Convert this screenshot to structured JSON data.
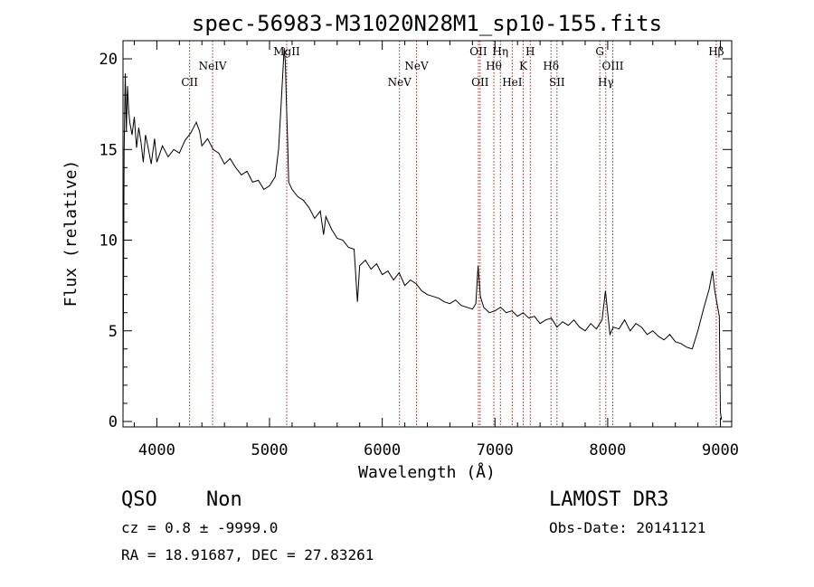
{
  "chart_data": {
    "type": "line",
    "title": "spec-56983-M31020N28M1_sp10-155.fits",
    "xlabel": "Wavelength (Å)",
    "ylabel": "Flux (relative)",
    "xlim": [
      3700,
      9100
    ],
    "ylim": [
      -0.3,
      21
    ],
    "x_ticks": [
      4000,
      5000,
      6000,
      7000,
      8000,
      9000
    ],
    "y_ticks": [
      0,
      5,
      10,
      15,
      20
    ],
    "grid": false,
    "line_color": "#000000",
    "marker_color": "#b22222",
    "series": [
      {
        "x": [
          3700,
          3710,
          3720,
          3730,
          3740,
          3750,
          3760,
          3780,
          3800,
          3820,
          3840,
          3860,
          3880,
          3900,
          3920,
          3950,
          3980,
          4000,
          4050,
          4100,
          4150,
          4200,
          4250,
          4300,
          4350,
          4380,
          4400,
          4450,
          4500,
          4550,
          4600,
          4650,
          4700,
          4750,
          4800,
          4850,
          4900,
          4950,
          5000,
          5050,
          5080,
          5100,
          5120,
          5130,
          5140,
          5150,
          5160,
          5170,
          5200,
          5250,
          5300,
          5350,
          5400,
          5450,
          5480,
          5500,
          5550,
          5600,
          5650,
          5700,
          5750,
          5780,
          5800,
          5850,
          5900,
          5950,
          6000,
          6050,
          6100,
          6150,
          6200,
          6250,
          6300,
          6350,
          6400,
          6450,
          6500,
          6550,
          6600,
          6650,
          6700,
          6750,
          6800,
          6830,
          6850,
          6870,
          6900,
          6950,
          7000,
          7050,
          7100,
          7150,
          7200,
          7250,
          7300,
          7350,
          7400,
          7450,
          7500,
          7550,
          7600,
          7650,
          7700,
          7750,
          7800,
          7850,
          7900,
          7950,
          7980,
          8000,
          8020,
          8050,
          8100,
          8150,
          8200,
          8250,
          8300,
          8350,
          8400,
          8450,
          8500,
          8550,
          8600,
          8650,
          8700,
          8750,
          8800,
          8850,
          8900,
          8930,
          8950,
          8970,
          8990,
          9000,
          9010
        ],
        "y": [
          0.2,
          14.8,
          19.2,
          16,
          18.5,
          17.2,
          16.5,
          15.8,
          16.8,
          15.1,
          16.2,
          15.4,
          14.3,
          15.8,
          15.2,
          14.2,
          15.6,
          14.3,
          15.2,
          14.6,
          15.0,
          14.8,
          15.5,
          15.9,
          16.5,
          16.0,
          15.2,
          15.6,
          15.0,
          14.8,
          14.2,
          14.5,
          14.0,
          13.6,
          13.8,
          13.2,
          13.3,
          12.8,
          13.0,
          13.5,
          15.0,
          17.2,
          19.5,
          20.6,
          19.8,
          17.5,
          15.5,
          13.2,
          12.8,
          12.4,
          12.2,
          11.8,
          11.2,
          11.6,
          10.3,
          11.3,
          10.6,
          10.1,
          10.0,
          9.6,
          9.5,
          6.6,
          8.6,
          8.9,
          8.4,
          8.7,
          8.1,
          8.3,
          7.8,
          8.2,
          7.5,
          7.8,
          7.6,
          7.2,
          7.0,
          6.9,
          6.8,
          6.6,
          6.5,
          6.7,
          6.4,
          6.3,
          6.2,
          6.5,
          8.6,
          6.9,
          6.3,
          6.0,
          6.1,
          6.3,
          6.0,
          6.1,
          5.8,
          6.0,
          5.7,
          5.8,
          5.4,
          5.6,
          5.7,
          5.2,
          5.5,
          5.3,
          5.6,
          5.2,
          5.0,
          5.4,
          5.1,
          5.6,
          7.2,
          6.0,
          4.8,
          5.2,
          5.1,
          5.6,
          5.0,
          5.4,
          5.2,
          4.8,
          5.0,
          4.7,
          4.5,
          4.8,
          4.4,
          4.3,
          4.1,
          4.0,
          5.0,
          6.2,
          7.3,
          8.3,
          7.2,
          6.5,
          5.8,
          0.5,
          0.1
        ]
      }
    ],
    "line_markers": [
      {
        "label": "CII",
        "x": 4291,
        "row": 3
      },
      {
        "label": "NeIV",
        "x": 4495,
        "row": 2
      },
      {
        "label": "MgII",
        "x": 5152,
        "row": 1
      },
      {
        "label": "NeV",
        "x": 6153,
        "row": 3
      },
      {
        "label": "NeV",
        "x": 6304,
        "row": 2
      },
      {
        "label": "OII",
        "x": 6853,
        "row": 1
      },
      {
        "label": "OII",
        "x": 6868,
        "row": 3
      },
      {
        "label": "Hθ",
        "x": 6990,
        "row": 2
      },
      {
        "label": "Hη",
        "x": 7048,
        "row": 1
      },
      {
        "label": "HeI",
        "x": 7153,
        "row": 3
      },
      {
        "label": "K",
        "x": 7250,
        "row": 2
      },
      {
        "label": "H",
        "x": 7313,
        "row": 1
      },
      {
        "label": "Hδ",
        "x": 7497,
        "row": 2
      },
      {
        "label": "SII",
        "x": 7550,
        "row": 3
      },
      {
        "label": "G",
        "x": 7930,
        "row": 1
      },
      {
        "label": "Hγ",
        "x": 7983,
        "row": 3
      },
      {
        "label": "OIII",
        "x": 8045,
        "row": 2
      },
      {
        "label": "Hβ",
        "x": 8963,
        "row": 1
      }
    ]
  },
  "info": {
    "class": "QSO",
    "subclass": "Non",
    "survey": "LAMOST DR3",
    "cz": "cz = 0.8 ± -9999.0",
    "obs_date": "Obs-Date: 20141121",
    "coords": "RA =  18.91687, DEC =  27.83261"
  }
}
